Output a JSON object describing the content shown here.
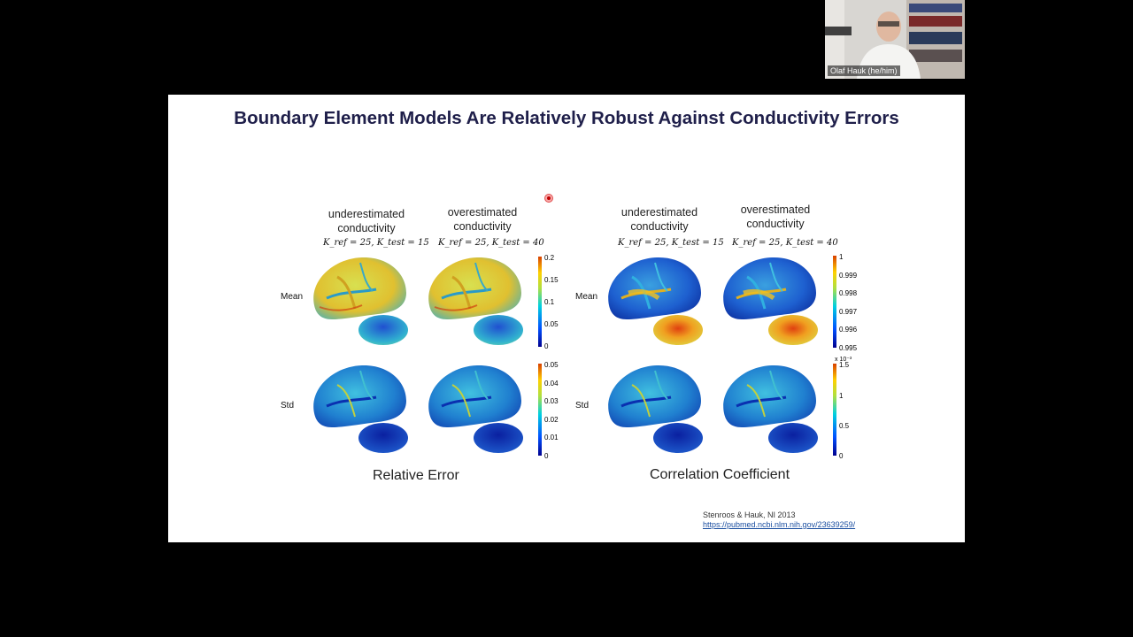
{
  "participant": {
    "name": "Olaf Hauk (he/him)"
  },
  "slide": {
    "title": "Boundary Element Models Are Relatively Robust Against Conductivity Errors",
    "columns": {
      "under": {
        "line1": "underestimated",
        "line2": "conductivity",
        "formula": "K_ref = 25, K_test = 15"
      },
      "over": {
        "line1": "overestimated",
        "line2": "conductivity",
        "formula": "K_ref = 25, K_test = 40"
      }
    },
    "rows": {
      "mean": "Mean",
      "std": "Std"
    },
    "captions": {
      "relative_error": "Relative Error",
      "correlation": "Correlation Coefficient"
    },
    "colorbars": {
      "rel_mean": [
        "0.2",
        "0.15",
        "0.1",
        "0.05",
        "0"
      ],
      "rel_std": [
        "0.05",
        "0.04",
        "0.03",
        "0.02",
        "0.01",
        "0"
      ],
      "corr_mean": [
        "1",
        "0.999",
        "0.998",
        "0.997",
        "0.996",
        "0.995"
      ],
      "corr_std": [
        "1.5",
        "1",
        "0.5",
        "0"
      ],
      "corr_std_exponent": "x 10⁻³"
    },
    "citation": "Stenroos & Hauk, NI 2013",
    "link": "https://pubmed.ncbi.nlm.nih.gov/23639259/"
  },
  "colors": {
    "slide_title": "#1f1f4a",
    "link": "#1a4ea0",
    "background": "#000000"
  }
}
